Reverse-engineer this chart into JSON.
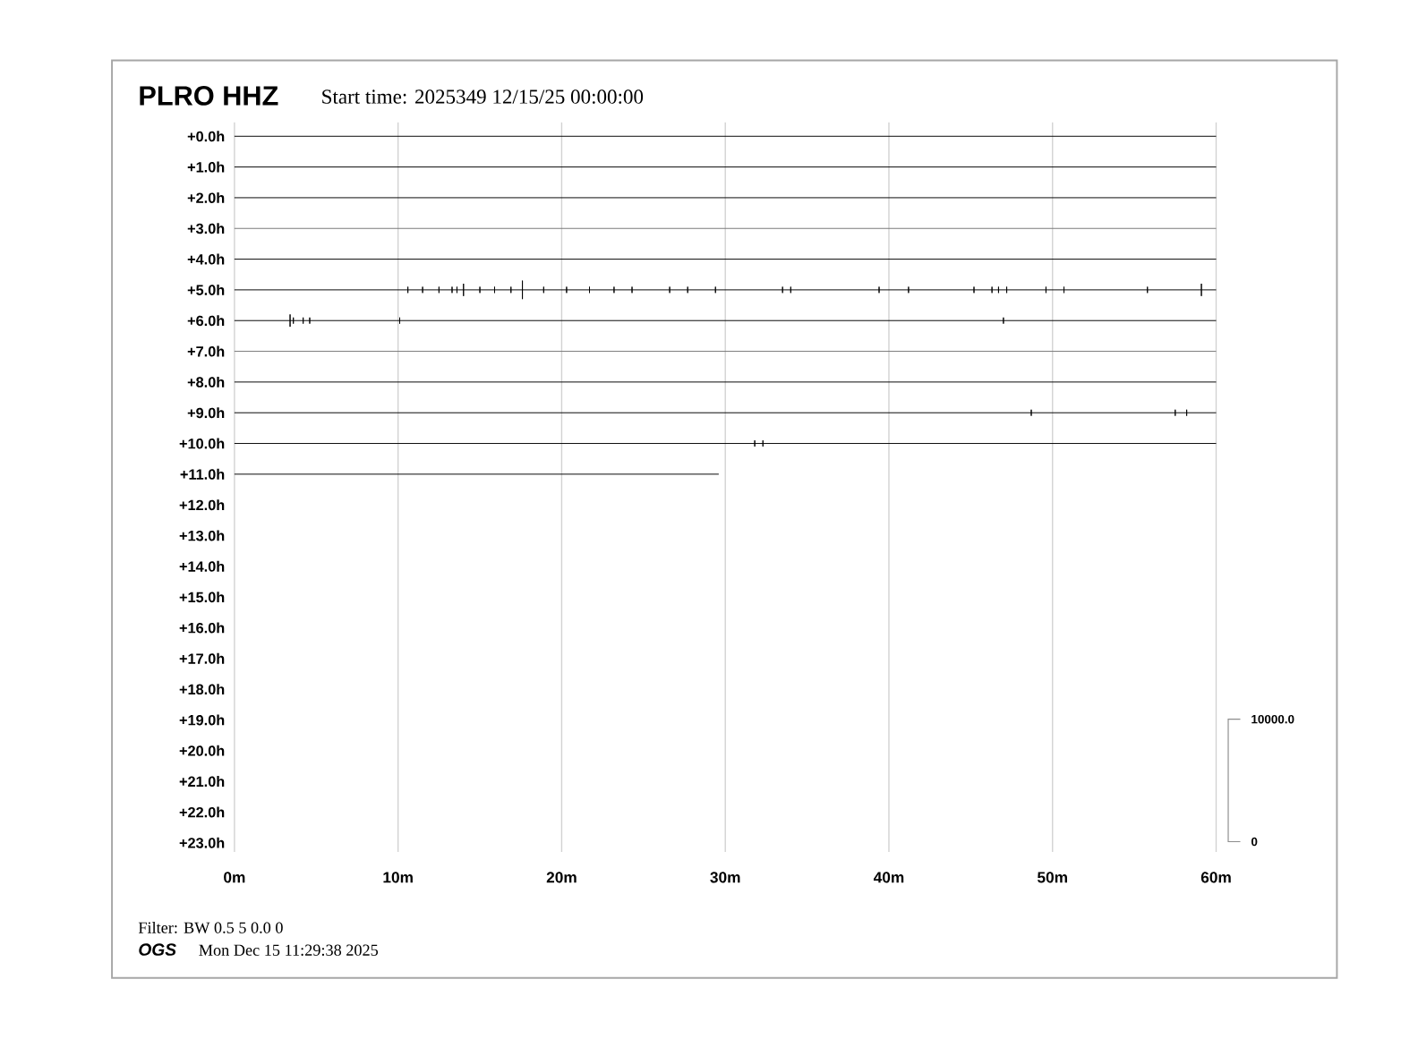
{
  "chart_data": {
    "type": "line",
    "title": "PLRO HHZ",
    "subtitle": "Start time: 2025349 12/15/25 00:00:00",
    "annotations": [
      "Filter: BW 0.5 5 0.0 0",
      "OGS",
      "Mon Dec 15 11:29:38 2025",
      "10000.0",
      "0"
    ],
    "xlim": [
      0,
      60
    ],
    "xticks": [
      {
        "value": 0,
        "label": "0m"
      },
      {
        "value": 10,
        "label": "10m"
      },
      {
        "value": 20,
        "label": "20m"
      },
      {
        "value": 30,
        "label": "30m"
      },
      {
        "value": 40,
        "label": "40m"
      },
      {
        "value": 50,
        "label": "50m"
      },
      {
        "value": 60,
        "label": "60m"
      }
    ],
    "ylim": [
      23.3,
      -0.45
    ],
    "yticks": [
      {
        "value": 0,
        "label": "+0.0h"
      },
      {
        "value": 1,
        "label": "+1.0h"
      },
      {
        "value": 2,
        "label": "+2.0h"
      },
      {
        "value": 3,
        "label": "+3.0h"
      },
      {
        "value": 4,
        "label": "+4.0h"
      },
      {
        "value": 5,
        "label": "+5.0h"
      },
      {
        "value": 6,
        "label": "+6.0h"
      },
      {
        "value": 7,
        "label": "+7.0h"
      },
      {
        "value": 8,
        "label": "+8.0h"
      },
      {
        "value": 9,
        "label": "+9.0h"
      },
      {
        "value": 10,
        "label": "+10.0h"
      },
      {
        "value": 11,
        "label": "+11.0h"
      },
      {
        "value": 12,
        "label": "+12.0h"
      },
      {
        "value": 13,
        "label": "+13.0h"
      },
      {
        "value": 14,
        "label": "+14.0h"
      },
      {
        "value": 15,
        "label": "+15.0h"
      },
      {
        "value": 16,
        "label": "+16.0h"
      },
      {
        "value": 17,
        "label": "+17.0h"
      },
      {
        "value": 18,
        "label": "+18.0h"
      },
      {
        "value": 19,
        "label": "+19.0h"
      },
      {
        "value": 20,
        "label": "+20.0h"
      },
      {
        "value": 21,
        "label": "+21.0h"
      },
      {
        "value": 22,
        "label": "+22.0h"
      },
      {
        "value": 23,
        "label": "+23.0h"
      }
    ],
    "grid": "x",
    "series": [
      {
        "color": "#000000",
        "x": [
          0,
          60
        ],
        "values": [
          0,
          0
        ]
      },
      {
        "color": "#000000",
        "x": [
          0,
          60
        ],
        "values": [
          1,
          1
        ]
      },
      {
        "color": "#000000",
        "x": [
          0,
          60
        ],
        "values": [
          2,
          2
        ]
      },
      {
        "color": "#777777",
        "x": [
          0,
          60
        ],
        "values": [
          3,
          3
        ]
      },
      {
        "color": "#000000",
        "x": [
          0,
          60
        ],
        "values": [
          4,
          4
        ]
      },
      {
        "color": "#000000",
        "x": [
          0,
          10.6,
          10.6,
          10.6,
          10.6,
          11.5,
          11.5,
          11.5,
          11.5,
          12.5,
          12.5,
          12.5,
          12.5,
          13.3,
          13.3,
          13.3,
          13.3,
          13.6,
          13.6,
          13.6,
          13.6,
          14.0,
          14.0,
          14.0,
          14.0,
          15.0,
          15.0,
          15.0,
          15.0,
          15.9,
          15.9,
          15.9,
          15.9,
          16.9,
          16.9,
          16.9,
          16.9,
          17.6,
          17.6,
          17.6,
          17.6,
          18.9,
          18.9,
          18.9,
          18.9,
          20.3,
          20.3,
          20.3,
          20.3,
          21.7,
          21.7,
          21.7,
          21.7,
          23.2,
          23.2,
          23.2,
          23.2,
          24.3,
          24.3,
          24.3,
          24.3,
          26.6,
          26.6,
          26.6,
          26.6,
          27.7,
          27.7,
          27.7,
          27.7,
          29.4,
          29.4,
          29.4,
          29.4,
          33.5,
          33.5,
          33.5,
          33.5,
          34.0,
          34.0,
          34.0,
          34.0,
          39.4,
          39.4,
          39.4,
          39.4,
          41.2,
          41.2,
          41.2,
          41.2,
          45.2,
          45.2,
          45.2,
          45.2,
          46.3,
          46.3,
          46.3,
          46.3,
          46.7,
          46.7,
          46.7,
          46.7,
          47.2,
          47.2,
          47.2,
          47.2,
          49.6,
          49.6,
          49.6,
          49.6,
          50.7,
          50.7,
          50.7,
          50.7,
          55.8,
          55.8,
          55.8,
          55.8,
          59.1,
          59.1,
          59.1,
          59.1,
          60
        ],
        "values": [
          5,
          5,
          4.9,
          5.1,
          5,
          5,
          4.9,
          5.1,
          5,
          5,
          4.9,
          5.1,
          5,
          5,
          4.9,
          5.1,
          5,
          5,
          4.9,
          5.1,
          5,
          5,
          4.8,
          5.2,
          5,
          5,
          4.9,
          5.1,
          5,
          5,
          4.9,
          5.1,
          5,
          5,
          4.9,
          5.1,
          5,
          5,
          4.7,
          5.3,
          5,
          5,
          4.9,
          5.1,
          5,
          5,
          4.9,
          5.1,
          5,
          5,
          4.9,
          5.1,
          5,
          5,
          4.9,
          5.1,
          5,
          5,
          4.9,
          5.1,
          5,
          5,
          4.9,
          5.1,
          5,
          5,
          4.9,
          5.1,
          5,
          5,
          4.9,
          5.1,
          5,
          5,
          4.9,
          5.1,
          5,
          5,
          4.9,
          5.1,
          5,
          5,
          4.9,
          5.1,
          5,
          5,
          4.9,
          5.1,
          5,
          5,
          4.9,
          5.1,
          5,
          5,
          4.9,
          5.1,
          5,
          5,
          4.9,
          5.1,
          5,
          5,
          4.9,
          5.1,
          5,
          5,
          4.9,
          5.1,
          5,
          5,
          4.9,
          5.1,
          5,
          5,
          4.9,
          5.1,
          5,
          5,
          4.8,
          5.2,
          5,
          5
        ]
      },
      {
        "color": "#000000",
        "x": [
          0,
          3.4,
          3.4,
          3.4,
          3.4,
          3.6,
          3.6,
          3.6,
          3.6,
          4.2,
          4.2,
          4.2,
          4.2,
          4.6,
          4.6,
          4.6,
          4.6,
          10.1,
          10.1,
          10.1,
          10.1,
          47.0,
          47.0,
          47.0,
          47.0,
          60
        ],
        "values": [
          6,
          6,
          5.8,
          6.2,
          6,
          6,
          5.9,
          6.1,
          6,
          6,
          5.9,
          6.1,
          6,
          6,
          5.9,
          6.1,
          6,
          6,
          5.9,
          6.1,
          6,
          6,
          5.9,
          6.1,
          6,
          6
        ]
      },
      {
        "color": "#777777",
        "x": [
          0,
          60
        ],
        "values": [
          7,
          7
        ]
      },
      {
        "color": "#000000",
        "x": [
          0,
          60
        ],
        "values": [
          8,
          8
        ]
      },
      {
        "color": "#000000",
        "x": [
          0,
          48.7,
          48.7,
          48.7,
          48.7,
          57.5,
          57.5,
          57.5,
          57.5,
          58.2,
          58.2,
          58.2,
          58.2,
          60
        ],
        "values": [
          9,
          9,
          8.9,
          9.1,
          9,
          9,
          8.9,
          9.1,
          9,
          9,
          8.9,
          9.1,
          9,
          9
        ]
      },
      {
        "color": "#000000",
        "x": [
          0,
          31.8,
          31.8,
          31.8,
          31.8,
          32.3,
          32.3,
          32.3,
          32.3,
          60
        ],
        "values": [
          10,
          10,
          9.9,
          10.1,
          10,
          10,
          9.9,
          10.1,
          10,
          10
        ]
      },
      {
        "color": "#000000",
        "x": [
          0,
          29.6
        ],
        "values": [
          11,
          11
        ]
      }
    ]
  }
}
